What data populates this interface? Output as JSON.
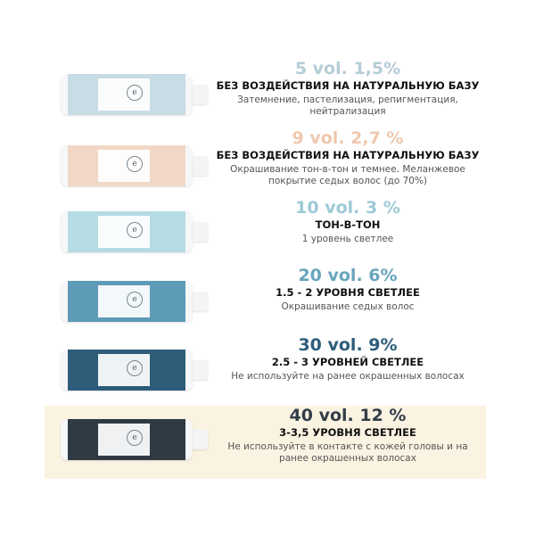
{
  "products": [
    {
      "vol": "5 vol. 1,5%",
      "heading": "БЕЗ ВОЗДЕЙСТВИЯ НА НАТУРАЛЬНУЮ БАЗУ",
      "description": "Затемнение, пастелизация, репигментация, нейтрализация",
      "vol_color": "#b5cdd6",
      "bottle_color": "#c8dce5",
      "highlighted": false
    },
    {
      "vol": "9 vol. 2,7 %",
      "heading": "БЕЗ ВОЗДЕЙСТВИЯ НА НАТУРАЛЬНУЮ БАЗУ",
      "description": "Окрашивание тон-в-тон и темнее. Меланжевое покрытие седых волос (до 70%)",
      "vol_color": "#efc8ae",
      "bottle_color": "#f1d8c6",
      "highlighted": false
    },
    {
      "vol": "10 vol. 3 %",
      "heading": "ТОН-В-ТОН",
      "description": "1 уровень светлее",
      "vol_color": "#9ccad6",
      "bottle_color": "#b5dce3",
      "highlighted": false
    },
    {
      "vol": "20 vol. 6%",
      "heading": "1.5 - 2 УРОВНЯ СВЕТЛЕЕ",
      "description": "Окрашивание седых волос",
      "vol_color": "#68a4bc",
      "bottle_color": "#5e9bb7",
      "highlighted": false
    },
    {
      "vol": "30 vol. 9%",
      "heading": "2.5 - 3 УРОВНЕЙ СВЕТЛЕЕ",
      "description": "Не используйте на ранее окрашенных волосах",
      "vol_color": "#2d5e7c",
      "bottle_color": "#2e5c79",
      "highlighted": false
    },
    {
      "vol": "40 vol. 12 %",
      "heading": "3-3,5 УРОВНЯ СВЕТЛЕЕ",
      "description": "Не используйте в контакте с кожей головы и на ранее окрашенных волосах",
      "vol_color": "#333e49",
      "bottle_color": "#2f3a45",
      "highlighted": true
    }
  ],
  "highlight_color": "#fbf3e2"
}
